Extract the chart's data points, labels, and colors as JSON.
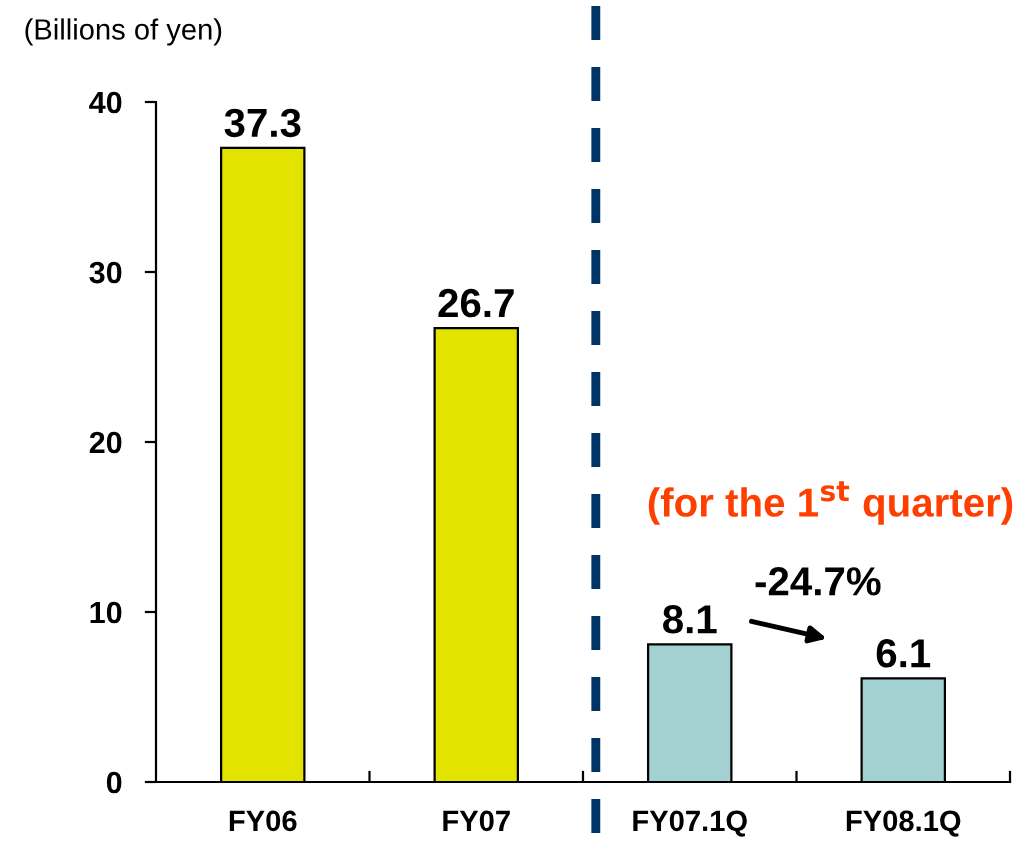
{
  "chart_data": {
    "type": "bar",
    "ylabel": "(Billions of yen)",
    "categories": [
      "FY06",
      "FY07",
      "FY07.1Q",
      "FY08.1Q"
    ],
    "values": [
      37.3,
      26.7,
      8.1,
      6.1
    ],
    "colors": [
      "#e3e300",
      "#e3e300",
      "#a3d1d1",
      "#a3d1d1"
    ],
    "ylim": [
      0,
      40
    ],
    "yticks": [
      0,
      10,
      20,
      30,
      40
    ],
    "data_labels": true,
    "annotations": [
      "(for the 1$^{st}$ quarter)",
      "-24.7%"
    ]
  }
}
